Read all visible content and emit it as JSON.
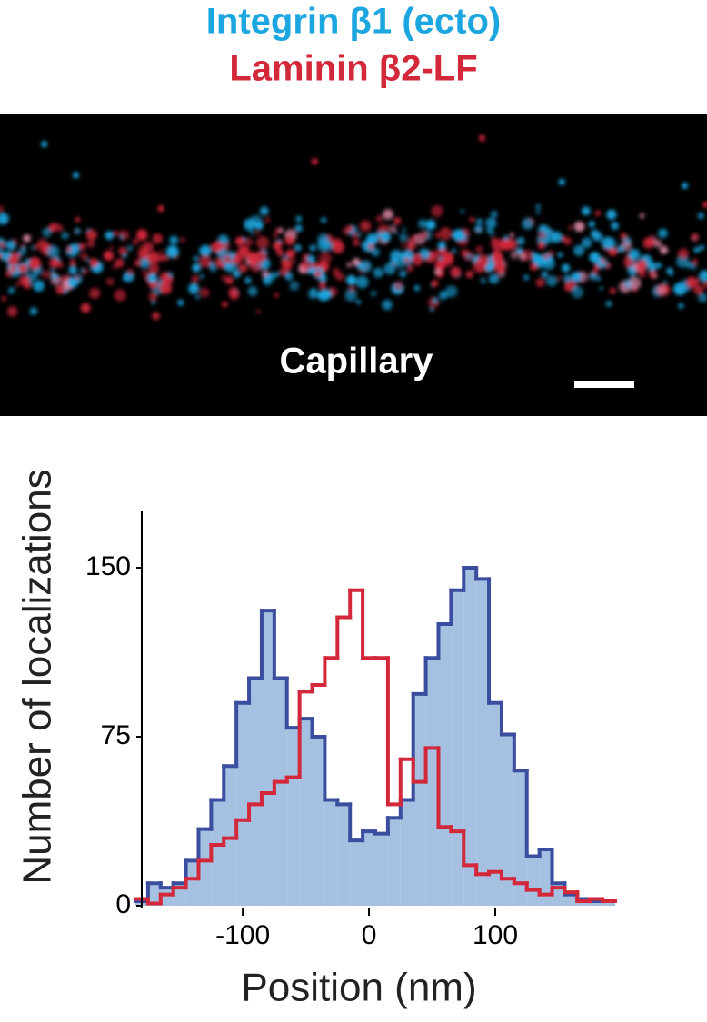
{
  "image": {
    "label": "Capillary"
  },
  "chart_data": {
    "type": "histogram",
    "bins": [
      -185,
      -175,
      -165,
      -155,
      -145,
      -135,
      -125,
      -115,
      -105,
      -95,
      -85,
      -75,
      -65,
      -55,
      -45,
      -35,
      -25,
      -15,
      -5,
      5,
      15,
      25,
      35,
      45,
      55,
      65,
      75,
      85,
      95,
      105,
      115,
      125,
      135,
      145,
      155,
      165,
      175,
      185,
      195
    ],
    "series": [
      {
        "name": "Integrin β1 (ecto)",
        "color": "#1ca6e0",
        "line_color": "#3a4d9e",
        "fill": "#a6c0e2",
        "values": [
          2,
          10,
          8,
          10,
          20,
          34,
          47,
          62,
          90,
          101,
          131,
          101,
          79,
          83,
          75,
          47,
          45,
          29,
          33,
          32,
          39,
          47,
          94,
          110,
          125,
          140,
          150,
          145,
          90,
          76,
          60,
          22,
          25,
          10,
          5,
          3,
          2,
          2
        ]
      },
      {
        "name": "Laminin β2-LF",
        "color": "#d2283a",
        "line_color": "#d2283a",
        "values": [
          3,
          1,
          5,
          8,
          12,
          20,
          27,
          30,
          38,
          45,
          50,
          55,
          57,
          95,
          98,
          110,
          128,
          140,
          110,
          110,
          45,
          65,
          55,
          70,
          35,
          33,
          18,
          14,
          15,
          12,
          10,
          7,
          5,
          8,
          6,
          2,
          3,
          2
        ]
      }
    ],
    "x_label": "Position (nm)",
    "y_label": "Number of localizations",
    "xlim": [
      -185,
      195
    ],
    "ylim": [
      0,
      175
    ],
    "xticks": [
      -100,
      0,
      100
    ],
    "yticks": [
      0,
      75,
      150
    ]
  }
}
